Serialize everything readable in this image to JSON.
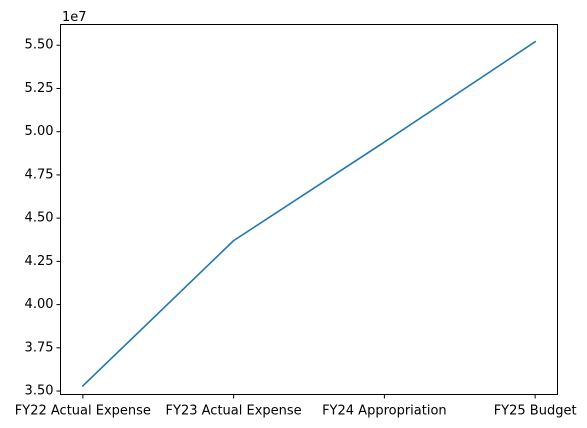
{
  "chart_data": {
    "type": "line",
    "categories": [
      "FY22 Actual Expense",
      "FY23 Actual Expense",
      "FY24 Appropriation",
      "FY25 Budget"
    ],
    "series": [
      {
        "values": [
          35300000,
          43700000,
          49400000,
          55200000
        ],
        "color": "#1f77b4"
      }
    ],
    "y_ticks": [
      35000000,
      37500000,
      40000000,
      42500000,
      45000000,
      47500000,
      50000000,
      52500000,
      55000000
    ],
    "y_tick_labels": [
      "3.50",
      "3.75",
      "4.00",
      "4.25",
      "4.50",
      "4.75",
      "5.00",
      "5.25",
      "5.50"
    ],
    "y_offset_label": "1e7",
    "ylim": [
      34800000,
      56200000
    ],
    "grid": false,
    "title": "",
    "xlabel": "",
    "ylabel": ""
  }
}
